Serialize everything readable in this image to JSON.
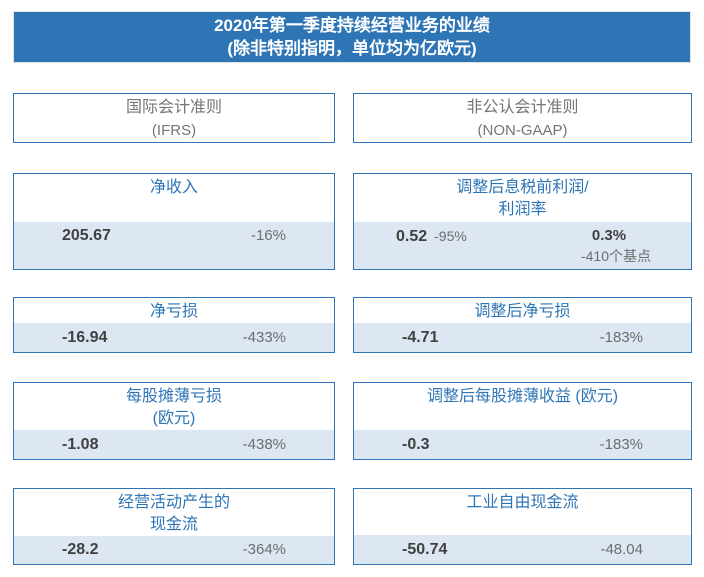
{
  "header": {
    "line1": "2020年第一季度持续经营业务的业绩",
    "line2": "(除非特别指明，单位均为亿欧元)"
  },
  "columns": [
    {
      "title": "国际会计准则",
      "subtitle": "(IFRS)"
    },
    {
      "title": "非公认会计准则",
      "subtitle": "(NON-GAAP)"
    }
  ],
  "cards": {
    "ifrs": [
      {
        "title1": "净收入",
        "value": "205.67",
        "change": "-16%"
      },
      {
        "title1": "净亏损",
        "value": "-16.94",
        "change": "-433%"
      },
      {
        "title1": "每股摊薄亏损",
        "title2": "(欧元)",
        "value": "-1.08",
        "change": "-438%"
      },
      {
        "title1": "经营活动产生的",
        "title2": "现金流",
        "value": "-28.2",
        "change": "-364%"
      }
    ],
    "nongaap": [
      {
        "title1": "调整后息税前利润/",
        "title2": "利润率",
        "value": "0.52",
        "change": "-95%",
        "value2": "0.3%",
        "change2": "-410个基点"
      },
      {
        "title1": "调整后净亏损",
        "value": "-4.71",
        "change": "-183%"
      },
      {
        "title1": "调整后每股摊薄收益 (欧元)",
        "value": "-0.3",
        "change": "-183%"
      },
      {
        "title1": "工业自由现金流",
        "value": "-50.74",
        "change": "-48.04"
      }
    ]
  },
  "colors": {
    "header_bg": "#2E75B6",
    "header_text": "#FFFFFF",
    "card_border": "#2E75B6",
    "card_title": "#2E75B6",
    "column_header_text": "#757575",
    "value_band_bg": "#DCE7F3",
    "value_text": "#404040",
    "change_text": "#6D6D6D",
    "page_bg": "#FFFFFF"
  },
  "chart_data": {
    "type": "table",
    "title": "2020年第一季度持续经营业务的业绩",
    "subtitle": "(除非特别指明，单位均为亿欧元)",
    "columns": [
      "国际会计准则 (IFRS)",
      "非公认会计准则 (NON-GAAP)"
    ],
    "rows": [
      {
        "ifrs_metric": "净收入",
        "ifrs_value": 205.67,
        "ifrs_change_yoy": "-16%",
        "nongaap_metric": "调整后息税前利润/利润率",
        "nongaap_value": 0.52,
        "nongaap_change_yoy": "-95%",
        "nongaap_margin": "0.3%",
        "nongaap_margin_change": "-410个基点"
      },
      {
        "ifrs_metric": "净亏损",
        "ifrs_value": -16.94,
        "ifrs_change_yoy": "-433%",
        "nongaap_metric": "调整后净亏损",
        "nongaap_value": -4.71,
        "nongaap_change_yoy": "-183%"
      },
      {
        "ifrs_metric": "每股摊薄亏损 (欧元)",
        "ifrs_value": -1.08,
        "ifrs_change_yoy": "-438%",
        "nongaap_metric": "调整后每股摊薄收益 (欧元)",
        "nongaap_value": -0.3,
        "nongaap_change_yoy": "-183%"
      },
      {
        "ifrs_metric": "经营活动产生的现金流",
        "ifrs_value": -28.2,
        "ifrs_change_yoy": "-364%",
        "nongaap_metric": "工业自由现金流",
        "nongaap_value": -50.74,
        "nongaap_prior_period": -48.04
      }
    ]
  }
}
